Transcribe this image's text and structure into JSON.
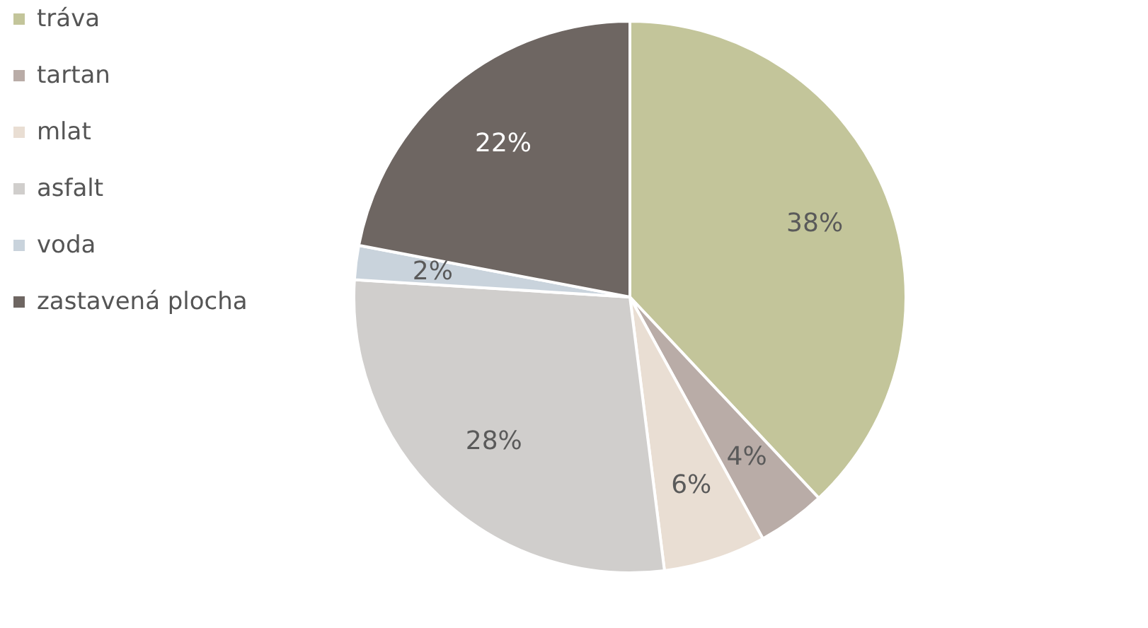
{
  "chart_data": {
    "type": "pie",
    "categories": [
      "tráva",
      "tartan",
      "mlat",
      "asfalt",
      "voda",
      "zastavená plocha"
    ],
    "values": [
      38,
      4,
      6,
      28,
      2,
      22
    ],
    "colors": [
      "#c3c59a",
      "#b9aca7",
      "#e9ded3",
      "#d0cecc",
      "#c9d3dc",
      "#6e6662"
    ],
    "value_labels": [
      "38%",
      "4%",
      "6%",
      "28%",
      "2%",
      "22%"
    ],
    "legend": "left"
  }
}
